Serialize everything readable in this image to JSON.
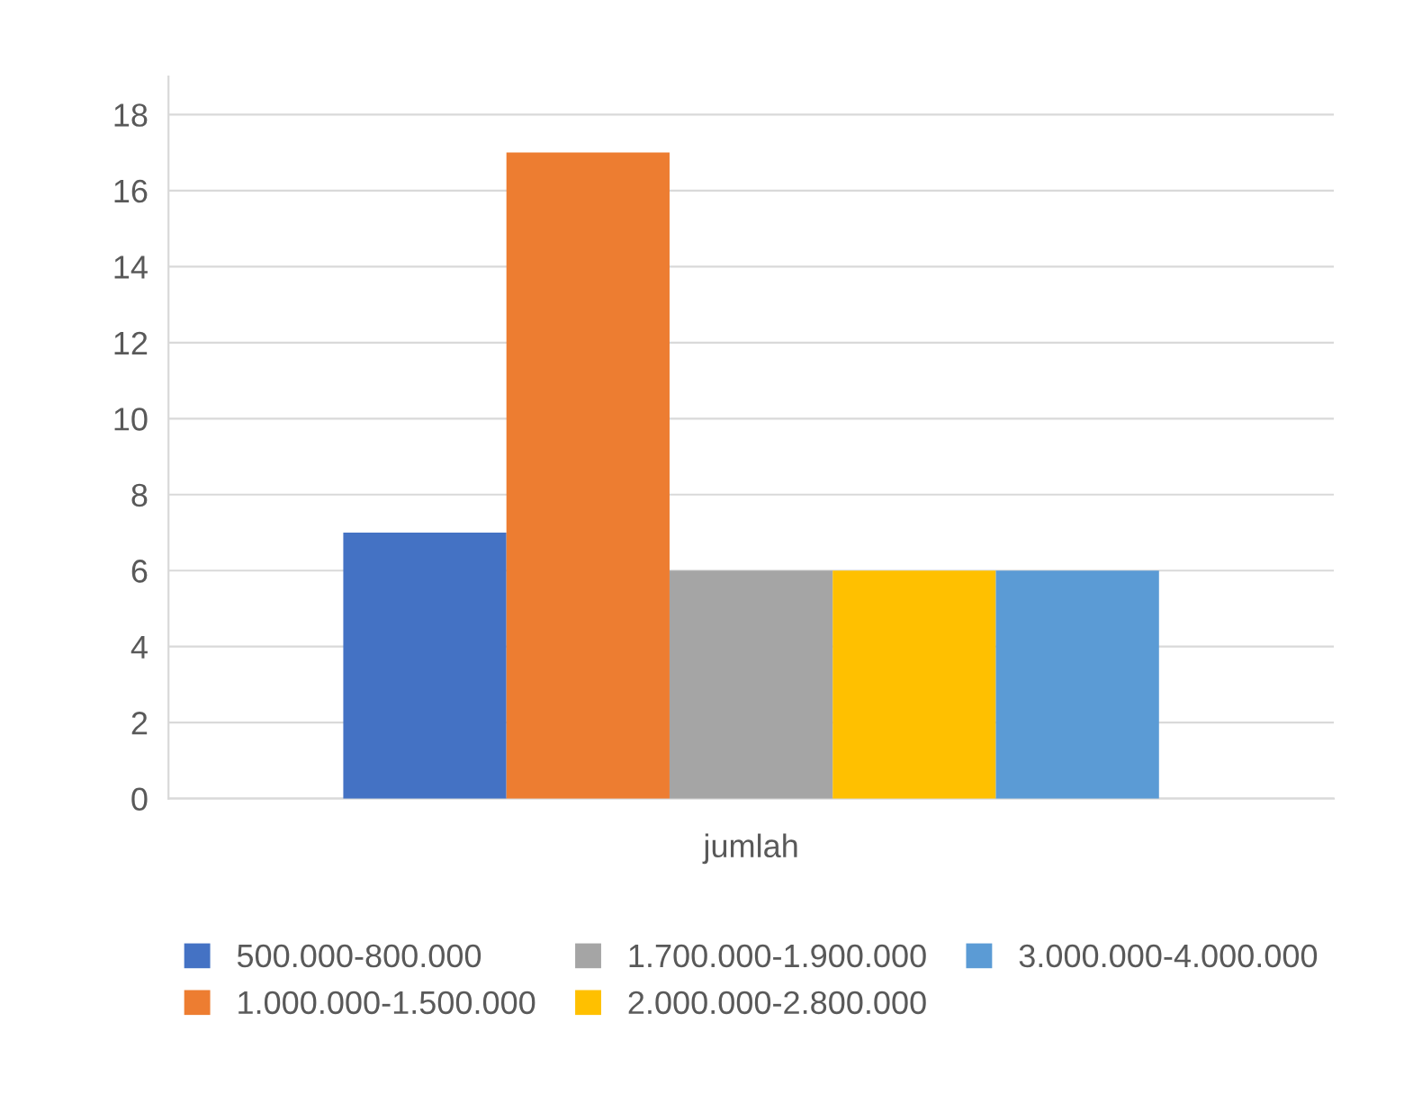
{
  "chart_data": {
    "type": "bar",
    "categories": [
      "jumlah"
    ],
    "series": [
      {
        "name": "500.000-800.000",
        "color": "#4472c4",
        "values": [
          7
        ]
      },
      {
        "name": "1.000.000-1.500.000",
        "color": "#ed7d31",
        "values": [
          17
        ]
      },
      {
        "name": "1.700.000-1.900.000",
        "color": "#a5a5a5",
        "values": [
          6
        ]
      },
      {
        "name": "2.000.000-2.800.000",
        "color": "#ffc000",
        "values": [
          6
        ]
      },
      {
        "name": "3.000.000-4.000.000",
        "color": "#5b9bd5",
        "values": [
          6
        ]
      }
    ],
    "ylim": [
      0,
      19
    ],
    "yticks": [
      0,
      2,
      4,
      6,
      8,
      10,
      12,
      14,
      16,
      18
    ],
    "grid": "y",
    "legend": "bottom"
  }
}
